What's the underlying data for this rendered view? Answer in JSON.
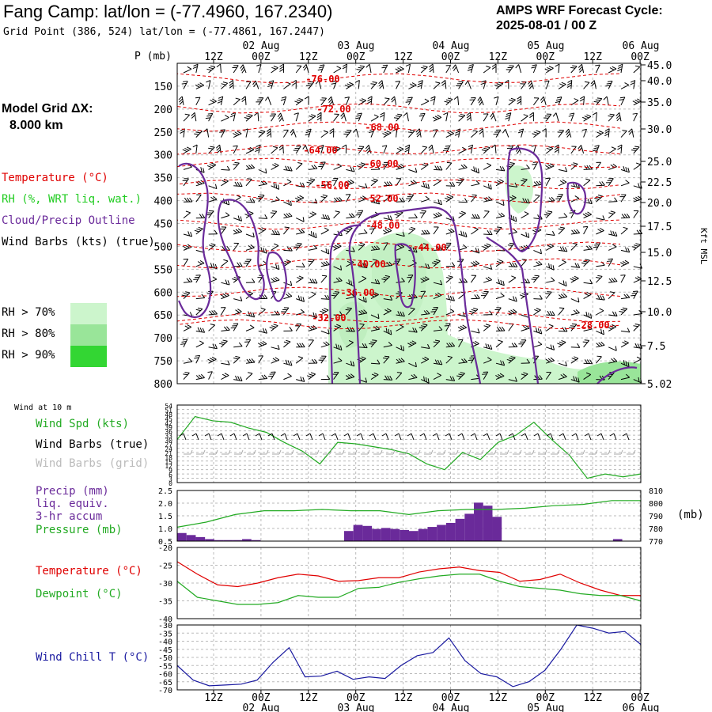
{
  "header": {
    "title": "Fang Camp:  lat/lon = (-77.4960, 167.2340)",
    "subtitle": "Grid Point (386, 524) lat/lon = (-77.4861, 167.2447)",
    "cycle_line1": "AMPS WRF Forecast Cycle:",
    "cycle_line2": "2025-08-01 / 00  Z"
  },
  "model_grid": {
    "label": "Model Grid ΔX:",
    "value": "8.000 km"
  },
  "legend": {
    "temperature": "Temperature (°C)",
    "rh": "RH (%, WRT liq. wat.)",
    "cloud": "Cloud/Precip Outline",
    "barbs": "Wind Barbs (kts) (true)",
    "rh70": "RH > 70%",
    "rh80": "RH > 80%",
    "rh90": "RH > 90%",
    "colors": {
      "temperature": "#e00000",
      "rh": "#22cc22",
      "cloud": "#6a2a9a",
      "rh70": "#ccf5cc",
      "rh80": "#99e599",
      "rh90": "#33d633"
    }
  },
  "axes": {
    "time_top": [
      "12Z",
      "00Z",
      "12Z",
      "00Z",
      "12Z",
      "00Z",
      "12Z",
      "00Z",
      "12Z",
      "00Z"
    ],
    "dates_top": [
      "02 Aug",
      "03 Aug",
      "04 Aug",
      "05 Aug",
      "06 Aug"
    ],
    "time_bottom": [
      "12Z",
      "00Z",
      "12Z",
      "00Z",
      "12Z",
      "00Z",
      "12Z",
      "00Z",
      "12Z",
      "00Z"
    ],
    "dates_bottom": [
      "02 Aug",
      "03 Aug",
      "04 Aug",
      "05 Aug",
      "06 Aug"
    ],
    "p_label": "P (mb)",
    "pressure_ticks": [
      "150",
      "200",
      "250",
      "300",
      "350",
      "400",
      "450",
      "500",
      "550",
      "600",
      "650",
      "700",
      "750",
      "800"
    ],
    "height_ticks": [
      "45.0",
      "40.0",
      "35.0",
      "30.0",
      "25.0",
      "22.5",
      "20.0",
      "17.5",
      "15.0",
      "12.5",
      "10.0",
      "7.5",
      "5.02"
    ],
    "height_unit": "Kft MSL"
  },
  "panels": {
    "wind": {
      "title": "Wind at 10 m",
      "spd": "Wind Spd (kts)",
      "barbs_true": "Wind Barbs (true)",
      "barbs_grid": "Wind Barbs (grid)",
      "yticks": [
        "54",
        "51",
        "48",
        "45",
        "42",
        "39",
        "36",
        "33",
        "30",
        "27",
        "24",
        "21",
        "18",
        "15",
        "12",
        "9",
        "6",
        "3",
        "0"
      ]
    },
    "precip": {
      "l1": "Precip (mm)",
      "l2": "liq. equiv.",
      "l3": "3-hr accum",
      "l4": "Pressure (mb)",
      "unit": "(mb)",
      "yticks": [
        "2.5",
        "2.0",
        "1.5",
        "1.0",
        "0.5"
      ],
      "rticks": [
        "810",
        "800",
        "790",
        "780",
        "770"
      ]
    },
    "temp": {
      "l1": "Temperature (°C)",
      "l2": "Dewpoint (°C)",
      "yticks": [
        "-20",
        "-25",
        "-30",
        "-35",
        "-40"
      ]
    },
    "chill": {
      "l1": "Wind Chill T (°C)",
      "yticks": [
        "-30",
        "-35",
        "-40",
        "-45",
        "-50",
        "-55",
        "-60",
        "-65",
        "-70"
      ]
    }
  },
  "chart_data": [
    {
      "type": "contour",
      "ylabel": "P (mb)",
      "ylim": [
        800,
        100
      ],
      "temperature_contour_labels": [
        "-76.00",
        "-72.00",
        "-68.00",
        "-64.00",
        "-60.00",
        "-56.00",
        "-52.00",
        "-48.00",
        "-44.00",
        "-40.00",
        "-36.00",
        "-32.00",
        "-28.00"
      ]
    },
    {
      "type": "line",
      "title": "Wind at 10 m",
      "series": [
        {
          "name": "Wind Spd (kts)",
          "values": [
            30,
            46,
            43,
            42,
            38,
            35,
            28,
            22,
            13,
            28,
            27,
            25,
            23,
            20,
            13,
            9,
            21,
            16,
            28,
            33,
            42,
            30,
            19,
            3,
            6,
            4,
            6
          ]
        }
      ],
      "ylim": [
        0,
        54
      ]
    },
    {
      "type": "bar",
      "series": [
        {
          "name": "Precip (mm)",
          "values": [
            0.4,
            0.3,
            0.2,
            0.1,
            0.05,
            0.05,
            0.05,
            0.1,
            0.05,
            0,
            0,
            0,
            0,
            0,
            0,
            0,
            0,
            0,
            0.5,
            0.8,
            0.75,
            0.6,
            0.65,
            0.6,
            0.55,
            0.5,
            0.6,
            0.7,
            0.8,
            0.9,
            1.1,
            1.35,
            1.9,
            1.75,
            1.2,
            0,
            0,
            0,
            0,
            0,
            0,
            0,
            0,
            0,
            0,
            0,
            0,
            0.1,
            0,
            0
          ]
        },
        {
          "name": "Pressure (mb)",
          "values": [
            781,
            785,
            791,
            794,
            794,
            795,
            794,
            794,
            791,
            794,
            795,
            795,
            796,
            798,
            799,
            802,
            802
          ]
        }
      ],
      "ylim": [
        0,
        2.5
      ],
      "y2lim": [
        770,
        810
      ]
    },
    {
      "type": "line",
      "series": [
        {
          "name": "Temperature (°C)",
          "values": [
            -24,
            -27.5,
            -30.5,
            -31,
            -30,
            -28.5,
            -27.5,
            -28,
            -29.5,
            -29.3,
            -28.5,
            -28.5,
            -26.9,
            -26,
            -25.5,
            -26.5,
            -27,
            -29.5,
            -29,
            -27.5,
            -30,
            -32,
            -33.5,
            -33.5
          ]
        },
        {
          "name": "Dewpoint (°C)",
          "values": [
            -29.5,
            -34,
            -35,
            -36,
            -36,
            -35.5,
            -33.5,
            -34,
            -34,
            -31.5,
            -31.2,
            -29.8,
            -28.8,
            -28,
            -27.5,
            -27.5,
            -29.5,
            -31,
            -31.5,
            -32,
            -33,
            -33.5,
            -33.5,
            -35
          ]
        }
      ],
      "ylim": [
        -40,
        -20
      ]
    },
    {
      "type": "line",
      "series": [
        {
          "name": "Wind Chill T (°C)",
          "values": [
            -55,
            -64,
            -67.5,
            -67,
            -66.5,
            -64,
            -53,
            -44,
            -62,
            -61.5,
            -58.5,
            -63.5,
            -62,
            -63,
            -55,
            -49,
            -47,
            -38,
            -52,
            -60,
            -62,
            -68,
            -65,
            -58,
            -45,
            -30,
            -32,
            -35,
            -34,
            -42
          ]
        }
      ],
      "ylim": [
        -70,
        -30
      ]
    }
  ]
}
